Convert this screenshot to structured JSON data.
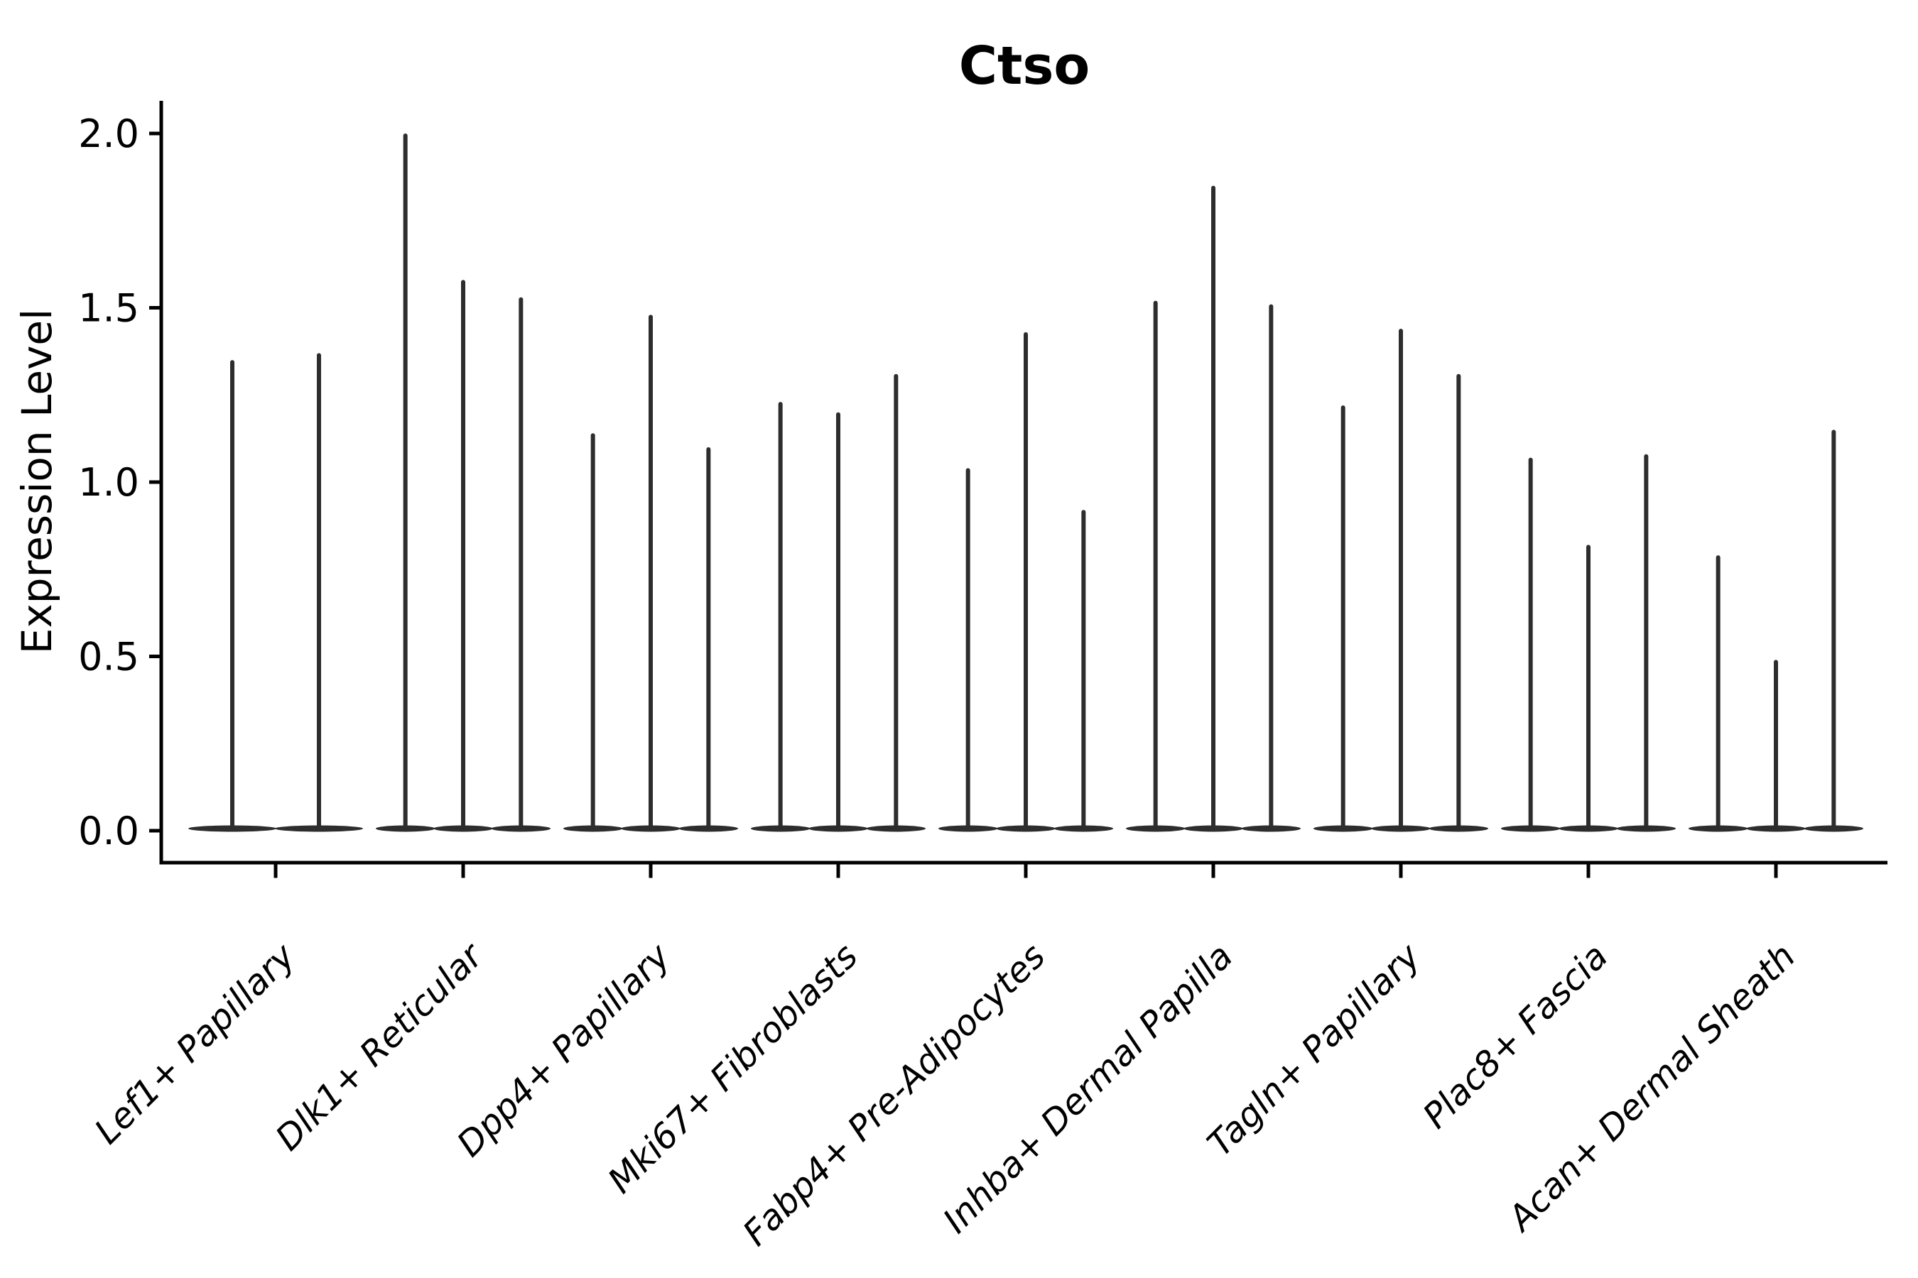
{
  "title": "Ctso",
  "y_axis": {
    "label": "Expression Level",
    "tick_labels": [
      "0.0",
      "0.5",
      "1.0",
      "1.5",
      "2.0"
    ]
  },
  "chart_data": {
    "type": "violin",
    "title": "Ctso",
    "xlabel": "",
    "ylabel": "Expression Level",
    "ylim": [
      0.0,
      2.05
    ],
    "yticks": [
      0.0,
      0.5,
      1.0,
      1.5,
      2.0
    ],
    "grid": false,
    "legend": false,
    "violin_color": "#2d2d2d",
    "axis_color": "#000000",
    "baseline_value": 0.0,
    "categories": [
      "Lef1+ Papillary",
      "Dlk1+ Reticular",
      "Dpp4+ Papillary",
      "Mki67+ Fibroblasts",
      "Fabp4+ Pre-Adipocytes",
      "Inhba+ Dermal Papilla",
      "Tagln+ Papillary",
      "Plac8+ Fascia",
      "Acan+ Dermal Sheath"
    ],
    "violin_maxima_per_category": [
      [
        1.35,
        1.37
      ],
      [
        2.0,
        1.58,
        1.53
      ],
      [
        1.14,
        1.48,
        1.1
      ],
      [
        1.23,
        1.2,
        1.31
      ],
      [
        1.04,
        1.43,
        0.92
      ],
      [
        1.52,
        1.85,
        1.51
      ],
      [
        1.22,
        1.44,
        1.31
      ],
      [
        1.07,
        0.82,
        1.08
      ],
      [
        0.79,
        0.49,
        1.15
      ]
    ]
  }
}
